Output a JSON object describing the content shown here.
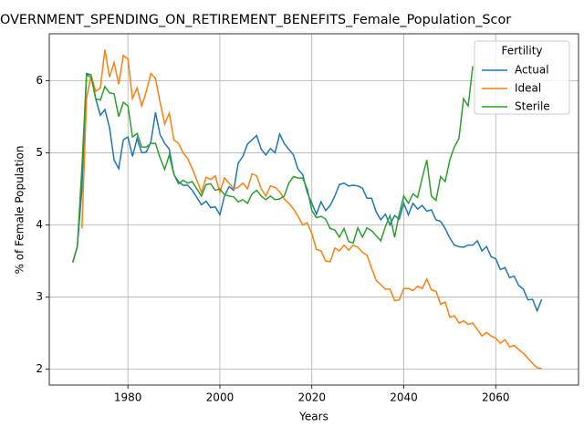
{
  "chart_data": {
    "type": "line",
    "title": "OVERNMENT_SPENDING_ON_RETIREMENT_BENEFITS_Female_Population_Scor",
    "xlabel": "Years",
    "ylabel": "% of Female Population",
    "legend_title": "Fertility",
    "legend": "upper right",
    "grid": true,
    "xlim": [
      1962.9,
      2078
    ],
    "ylim": [
      1.78,
      6.65
    ],
    "xticks": [
      1980,
      2000,
      2020,
      2040,
      2060
    ],
    "yticks": [
      2,
      3,
      4,
      5,
      6
    ],
    "x": [
      1968,
      1969,
      1970,
      1971,
      1972,
      1973,
      1974,
      1975,
      1976,
      1977,
      1978,
      1979,
      1980,
      1981,
      1982,
      1983,
      1984,
      1985,
      1986,
      1987,
      1988,
      1989,
      1990,
      1991,
      1992,
      1993,
      1994,
      1995,
      1996,
      1997,
      1998,
      1999,
      2000,
      2001,
      2002,
      2003,
      2004,
      2005,
      2006,
      2007,
      2008,
      2009,
      2010,
      2011,
      2012,
      2013,
      2014,
      2015,
      2016,
      2017,
      2018,
      2019,
      2020,
      2021,
      2022,
      2023,
      2024,
      2025,
      2026,
      2027,
      2028,
      2029,
      2030,
      2031,
      2032,
      2033,
      2034,
      2035,
      2036,
      2037,
      2038,
      2039,
      2040,
      2041,
      2042,
      2043,
      2044,
      2045,
      2046,
      2047,
      2048,
      2049,
      2050,
      2051,
      2052,
      2053,
      2054,
      2055,
      2056,
      2057,
      2058,
      2059,
      2060,
      2061,
      2062,
      2063,
      2064,
      2065,
      2066,
      2067,
      2068,
      2069,
      2070
    ],
    "series": [
      {
        "name": "Actual",
        "color": "#1f77b4",
        "values": [
          3.48,
          3.7,
          4.5,
          6.1,
          6.08,
          5.75,
          5.52,
          5.6,
          5.35,
          4.9,
          4.78,
          5.18,
          5.22,
          4.95,
          5.2,
          5.0,
          5.01,
          5.15,
          5.56,
          5.25,
          5.13,
          5.05,
          4.7,
          4.6,
          4.55,
          4.55,
          4.48,
          4.38,
          4.28,
          4.33,
          4.24,
          4.25,
          4.14,
          4.4,
          4.53,
          4.48,
          4.86,
          4.95,
          5.12,
          5.18,
          5.24,
          5.05,
          4.97,
          5.06,
          5.0,
          5.26,
          5.13,
          5.05,
          4.97,
          4.77,
          4.7,
          4.45,
          4.3,
          4.15,
          4.32,
          4.2,
          4.27,
          4.4,
          4.56,
          4.58,
          4.54,
          4.55,
          4.54,
          4.51,
          4.37,
          4.37,
          4.18,
          4.07,
          4.15,
          4.0,
          4.13,
          4.08,
          4.3,
          4.14,
          4.3,
          4.22,
          4.27,
          4.19,
          4.21,
          4.07,
          4.05,
          3.95,
          3.82,
          3.72,
          3.7,
          3.69,
          3.72,
          3.72,
          3.78,
          3.64,
          3.7,
          3.56,
          3.53,
          3.38,
          3.41,
          3.27,
          3.29,
          3.16,
          3.11,
          2.96,
          2.97,
          2.81,
          2.97
        ]
      },
      {
        "name": "Ideal",
        "color": "#ff7f0e",
        "values": [
          null,
          null,
          3.95,
          5.75,
          6.08,
          5.85,
          5.9,
          6.43,
          6.05,
          6.25,
          5.95,
          6.35,
          6.3,
          5.75,
          5.9,
          5.65,
          5.85,
          6.1,
          6.03,
          5.7,
          5.4,
          5.55,
          5.18,
          5.13,
          5.0,
          4.92,
          4.78,
          4.62,
          4.45,
          4.66,
          4.63,
          4.68,
          4.45,
          4.65,
          4.58,
          4.5,
          4.52,
          4.58,
          4.5,
          4.71,
          4.68,
          4.5,
          4.4,
          4.54,
          4.52,
          4.46,
          4.36,
          4.3,
          4.22,
          4.12,
          4.0,
          4.03,
          3.88,
          3.66,
          3.64,
          3.5,
          3.49,
          3.68,
          3.64,
          3.72,
          3.65,
          3.72,
          3.69,
          3.62,
          3.58,
          3.4,
          3.23,
          3.17,
          3.11,
          3.11,
          2.95,
          2.96,
          3.12,
          3.12,
          3.09,
          3.15,
          3.12,
          3.25,
          3.1,
          3.08,
          2.9,
          2.93,
          2.72,
          2.74,
          2.64,
          2.67,
          2.62,
          2.64,
          2.55,
          2.46,
          2.51,
          2.46,
          2.43,
          2.36,
          2.41,
          2.31,
          2.33,
          2.27,
          2.22,
          2.15,
          2.08,
          2.02,
          2.01
        ]
      },
      {
        "name": "Sterile",
        "color": "#2ca02c",
        "values": [
          3.48,
          3.7,
          4.8,
          6.08,
          6.05,
          5.75,
          5.73,
          5.92,
          5.83,
          5.82,
          5.5,
          5.7,
          5.65,
          5.22,
          5.27,
          5.08,
          5.08,
          5.13,
          5.13,
          4.93,
          4.77,
          4.97,
          4.7,
          4.57,
          4.62,
          4.58,
          4.6,
          4.5,
          4.4,
          4.56,
          4.57,
          4.48,
          4.5,
          4.42,
          4.4,
          4.39,
          4.32,
          4.35,
          4.3,
          4.43,
          4.48,
          4.4,
          4.35,
          4.4,
          4.35,
          4.36,
          4.4,
          4.58,
          4.67,
          4.65,
          4.65,
          4.5,
          4.2,
          4.1,
          4.12,
          4.08,
          3.95,
          3.93,
          3.83,
          3.95,
          3.77,
          3.75,
          3.96,
          3.83,
          3.96,
          3.92,
          3.85,
          3.78,
          3.98,
          4.13,
          3.83,
          4.15,
          4.4,
          4.3,
          4.43,
          4.38,
          4.65,
          4.9,
          4.4,
          4.34,
          4.67,
          4.6,
          4.9,
          5.08,
          5.2,
          5.75,
          5.65,
          6.2,
          null,
          null,
          null,
          null,
          null,
          null,
          null,
          null,
          null,
          null,
          null,
          null,
          null,
          null,
          null
        ]
      }
    ]
  }
}
